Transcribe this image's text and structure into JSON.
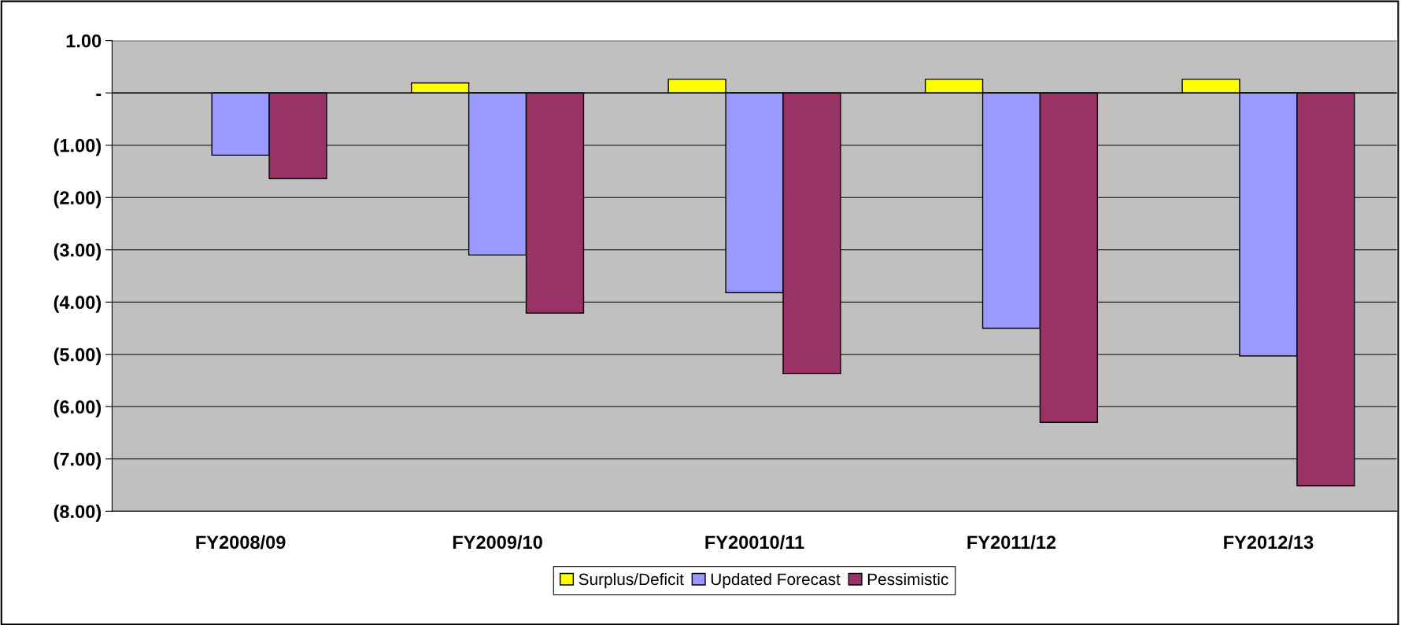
{
  "chart_data": {
    "type": "bar",
    "categories": [
      "FY2008/09",
      "FY2009/10",
      "FY20010/11",
      "FY2011/12",
      "FY2012/13"
    ],
    "series": [
      {
        "name": "Surplus/Deficit",
        "color": "#ffff00",
        "values": [
          null,
          0.19,
          0.26,
          0.26,
          0.26
        ]
      },
      {
        "name": "Updated Forecast",
        "color": "#9999ff",
        "values": [
          -1.19,
          -3.1,
          -3.82,
          -4.5,
          -5.03
        ]
      },
      {
        "name": "Pessimistic",
        "color": "#993366",
        "values": [
          -1.64,
          -4.21,
          -5.37,
          -6.3,
          -7.51
        ]
      }
    ],
    "ylim": [
      -8,
      1
    ],
    "yticks": [
      {
        "value": 1,
        "label": "1.00"
      },
      {
        "value": 0,
        "label": "-"
      },
      {
        "value": -1,
        "label": "(1.00)"
      },
      {
        "value": -2,
        "label": "(2.00)"
      },
      {
        "value": -3,
        "label": "(3.00)"
      },
      {
        "value": -4,
        "label": "(4.00)"
      },
      {
        "value": -5,
        "label": "(5.00)"
      },
      {
        "value": -6,
        "label": "(6.00)"
      },
      {
        "value": -7,
        "label": "(7.00)"
      },
      {
        "value": -8,
        "label": "(8.00)"
      }
    ],
    "grid": "y",
    "legend": "bottom"
  }
}
